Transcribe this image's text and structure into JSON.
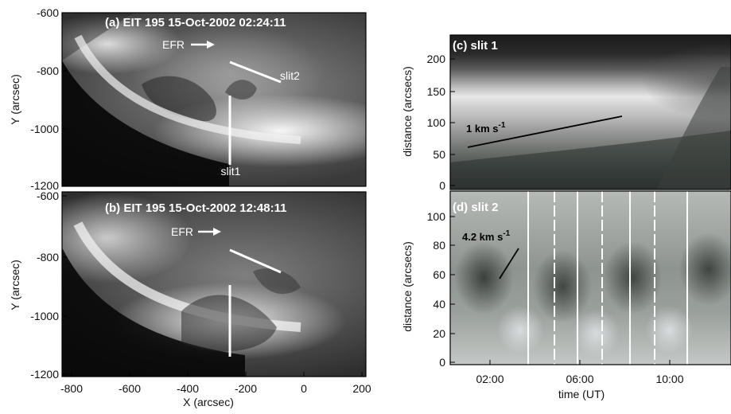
{
  "panel_a": {
    "label": "(a) EIT 195 15-Oct-2002 02:24:11",
    "efr_label": "EFR",
    "slit1_label": "slit1",
    "slit2_label": "slit2",
    "y_axis_title": "Y (arcsec)",
    "y_ticks": [
      "-600",
      "-800",
      "-1000",
      "-1200"
    ]
  },
  "panel_b": {
    "label": "(b) EIT 195 15-Oct-2002 12:48:11",
    "efr_label": "EFR",
    "y_axis_title": "Y (arcsec)",
    "y_ticks": [
      "-600",
      "-800",
      "-1000",
      "-1200"
    ],
    "x_axis_title": "X (arcsec)",
    "x_ticks": [
      "-800",
      "-600",
      "-400",
      "-200",
      "0",
      "200"
    ]
  },
  "panel_c": {
    "label": "(c) slit 1",
    "speed_label": "1 km s",
    "speed_exp": "-1",
    "y_axis_title": "distance (arcsecs)",
    "y_ticks": [
      "200",
      "150",
      "100",
      "50",
      "0"
    ]
  },
  "panel_d": {
    "label": "(d) slit 2",
    "speed_label": "4.2 km s",
    "speed_exp": "-1",
    "y_axis_title": "distance (arcsecs)",
    "y_ticks": [
      "100",
      "80",
      "60",
      "40",
      "20",
      "0"
    ],
    "x_axis_title": "time (UT)",
    "x_ticks": [
      "02:00",
      "06:00",
      "10:00"
    ]
  }
}
